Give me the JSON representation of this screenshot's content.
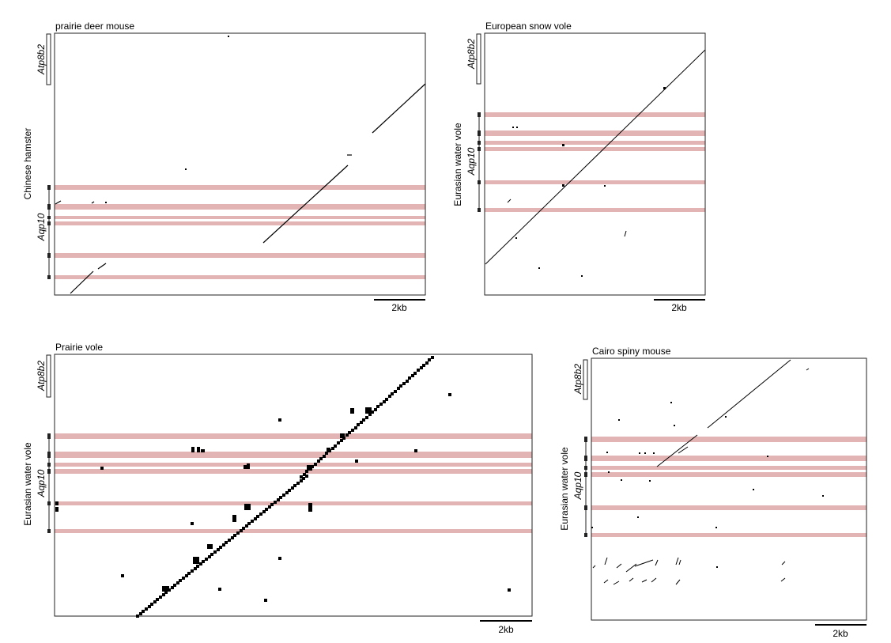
{
  "panels": [
    {
      "id": "p1",
      "title": "prairie deer mouse",
      "y_species": "Chinese hamster",
      "gene_top": "Atp8b2",
      "gene_bottom": "Aqp10",
      "scale_label": "2kb"
    },
    {
      "id": "p2",
      "title": "European snow vole",
      "y_species": "Eurasian water vole",
      "gene_top": "Atp8b2",
      "gene_bottom": "Aqp10",
      "scale_label": "2kb"
    },
    {
      "id": "p3",
      "title": "Prairie vole",
      "y_species": "Eurasian water vole",
      "gene_top": "Atp8b2",
      "gene_bottom": "Aqp10",
      "scale_label": "2kb"
    },
    {
      "id": "p4",
      "title": "Cairo spiny mouse",
      "y_species": "Eurasian water vole",
      "gene_top": "Atp8b2",
      "gene_bottom": "Aqp10",
      "scale_label": "2kb"
    }
  ],
  "colors": {
    "exon_band": "#e2b4b4",
    "dots": "#000000",
    "frame": "#222222"
  }
}
